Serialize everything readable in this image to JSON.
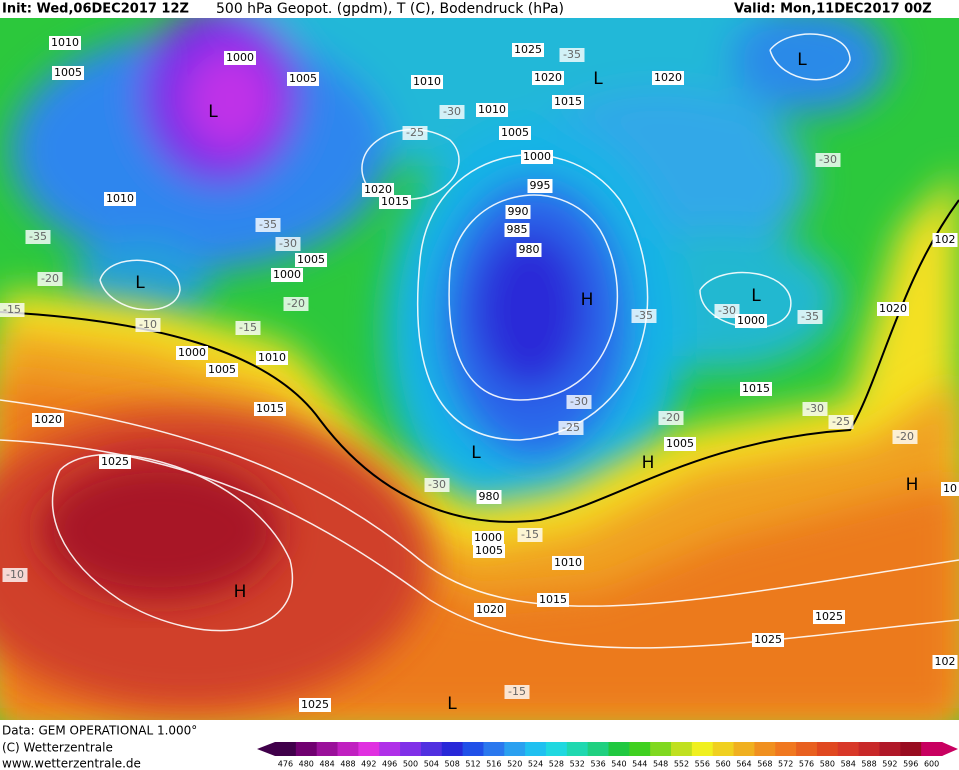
{
  "header": {
    "init": "Init: Wed,06DEC2017 12Z",
    "title": "500 hPa Geopot. (gpdm), T (C), Bodendruck (hPa)",
    "valid": "Valid: Mon,11DEC2017 00Z"
  },
  "footer": {
    "data": "Data: GEM OPERATIONAL 1.000°",
    "copyright": "(C) Wetterzentrale",
    "url": "www.wetterzentrale.de"
  },
  "colorbar": {
    "ticks": [
      476,
      480,
      484,
      488,
      492,
      496,
      500,
      504,
      508,
      512,
      516,
      520,
      524,
      528,
      532,
      536,
      540,
      544,
      548,
      552,
      556,
      560,
      564,
      568,
      572,
      576,
      580,
      584,
      588,
      592,
      596,
      600
    ],
    "colors": [
      "#40004a",
      "#700070",
      "#9a109a",
      "#c020c0",
      "#e030e0",
      "#b030e8",
      "#8030e8",
      "#5030e0",
      "#2828d8",
      "#2050e8",
      "#2a78ee",
      "#2aa0f0",
      "#20c0f0",
      "#20d8e0",
      "#20d8b0",
      "#20d080",
      "#20c840",
      "#40d020",
      "#80d820",
      "#c0e020",
      "#f0f020",
      "#f0d020",
      "#f0b020",
      "#f09020",
      "#f07820",
      "#e86020",
      "#e04820",
      "#d83828",
      "#c82828",
      "#b01828",
      "#980c20",
      "#c80060"
    ]
  },
  "map_labels": [
    "1010",
    "1005",
    "1000",
    "L",
    "1005",
    "1010",
    "-30",
    "-25",
    "1020",
    "1015",
    "1025",
    "-35",
    "L",
    "1020",
    "1015",
    "1010",
    "1005",
    "1000",
    "995",
    "990",
    "985",
    "980",
    "H",
    "1020",
    "L",
    "-30",
    "1010",
    "-35",
    "-35",
    "-30",
    "1005",
    "1000",
    "-20",
    "L",
    "-20",
    "-15",
    "-10",
    "-15",
    "1000",
    "1010",
    "1005",
    "1015",
    "1020",
    "1025",
    "-35",
    "-30",
    "L",
    "1000",
    "-35",
    "1020",
    "102",
    "1015",
    "-30",
    "-25",
    "-20",
    "-30",
    "-25",
    "-20",
    "1005",
    "H",
    "L",
    "-30",
    "H",
    "10",
    "980",
    "1000",
    "1005",
    "-15",
    "1010",
    "-10",
    "H",
    "1015",
    "1020",
    "1025",
    "1025",
    "102",
    "-15",
    "L",
    "1025"
  ]
}
